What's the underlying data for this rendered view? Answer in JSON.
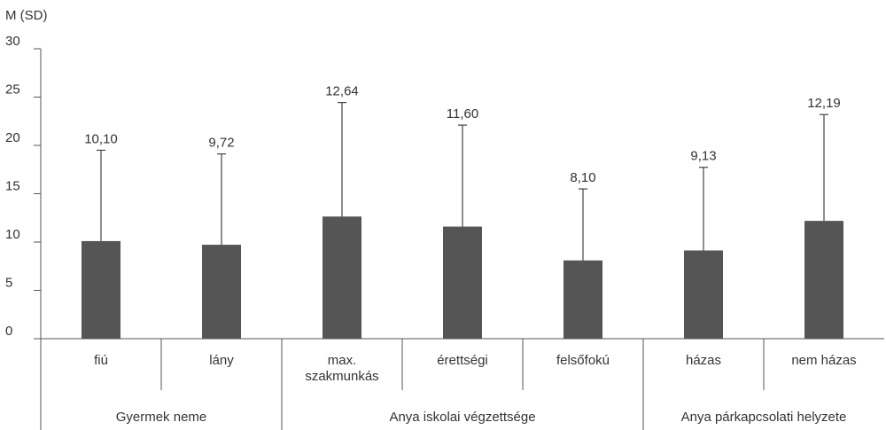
{
  "chart_data": {
    "type": "bar",
    "ylabel": "M (SD)",
    "ylim": [
      0,
      30
    ],
    "yticks": [
      0,
      5,
      10,
      15,
      20,
      25,
      30
    ],
    "categories": [
      "fiú",
      "lány",
      "max.\nszakmunkás",
      "érettségi",
      "felsőfokú",
      "házas",
      "nem házas"
    ],
    "values": [
      10.1,
      9.72,
      12.64,
      11.6,
      8.1,
      9.13,
      12.19
    ],
    "errors": [
      9.4,
      9.4,
      11.8,
      10.5,
      7.4,
      8.6,
      11.0
    ],
    "value_labels": [
      "10,10",
      "9,72",
      "12,64",
      "11,60",
      "8,10",
      "9,13",
      "12,19"
    ],
    "groups": [
      {
        "label": "Gyermek neme",
        "categories": [
          0,
          1
        ]
      },
      {
        "label": "Anya iskolai végzettsége",
        "categories": [
          2,
          3,
          4
        ]
      },
      {
        "label": "Anya párkapcsolati helyzete",
        "categories": [
          5,
          6
        ]
      }
    ],
    "bar_color": "#555555",
    "grid": false
  }
}
